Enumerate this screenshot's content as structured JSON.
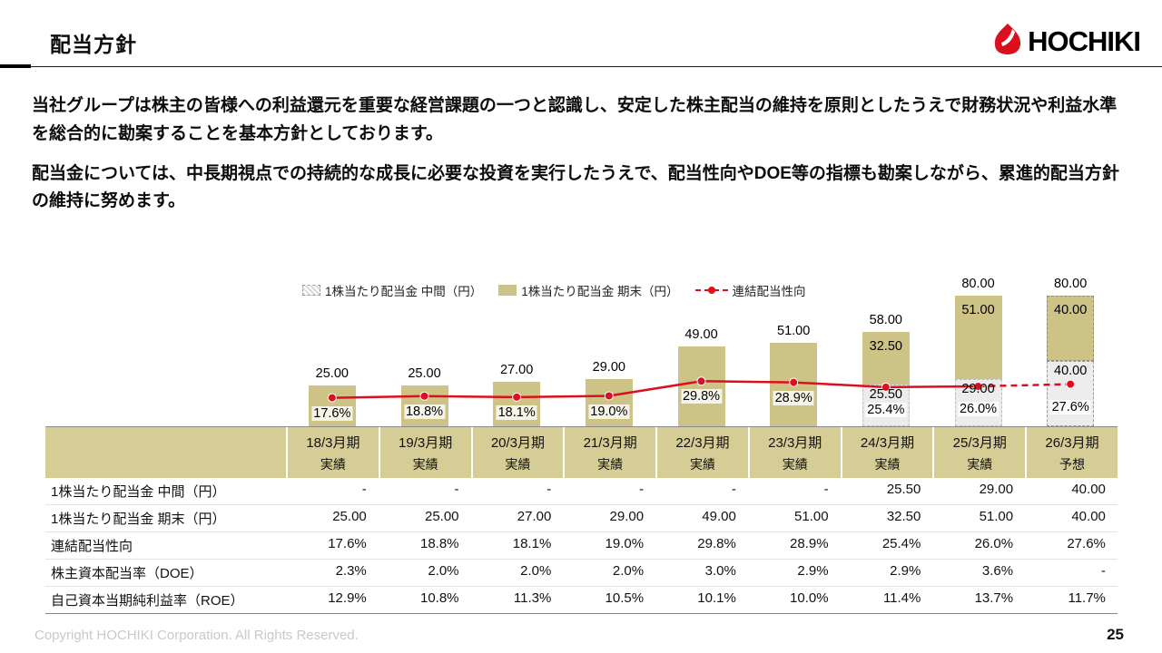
{
  "header": {
    "title": "配当方針",
    "logo_text": "HOCHIKI"
  },
  "intro": {
    "p1": "当社グループは株主の皆様への利益還元を重要な経営課題の一つと認識し、安定した株主配当の維持を原則としたうえで財務状況や利益水準を総合的に勘案することを基本方針としております。",
    "p2": "配当金については、中長期視点での持続的な成長に必要な投資を実行したうえで、配当性向やDOE等の指標も勘案しながら、累進的配当方針の維持に努めます。"
  },
  "chart_data": {
    "type": "bar",
    "categories": [
      "18/3月期",
      "19/3月期",
      "20/3月期",
      "21/3月期",
      "22/3月期",
      "23/3月期",
      "24/3月期",
      "25/3月期",
      "26/3月期"
    ],
    "legend": [
      {
        "label": "1株当たり配当金 中間（円）",
        "swatch": "hatched"
      },
      {
        "label": "1株当たり配当金 期末（円）",
        "swatch": "solid"
      },
      {
        "label": "連結配当性向",
        "swatch": "line"
      }
    ],
    "series": [
      {
        "name": "1株当たり配当金 中間（円）",
        "type": "bar",
        "values": [
          null,
          null,
          null,
          null,
          null,
          null,
          25.5,
          29.0,
          40.0
        ],
        "labels": [
          "",
          "",
          "",
          "",
          "",
          "",
          "25.50",
          "29.00",
          "40.00"
        ]
      },
      {
        "name": "1株当たり配当金 期末（円）",
        "type": "bar",
        "values": [
          25,
          25,
          27,
          29,
          49,
          51,
          32.5,
          51,
          40
        ],
        "labels": [
          "25.00",
          "25.00",
          "27.00",
          "29.00",
          "49.00",
          "51.00",
          "32.50",
          "51.00",
          "40.00"
        ]
      },
      {
        "name": "連結配当性向",
        "type": "line",
        "values": [
          17.6,
          18.8,
          18.1,
          19.0,
          29.8,
          28.9,
          25.4,
          26.0,
          27.6
        ],
        "labels": [
          "17.6%",
          "18.8%",
          "18.1%",
          "19.0%",
          "29.8%",
          "28.9%",
          "25.4%",
          "26.0%",
          "27.6%"
        ]
      }
    ],
    "total_labels": [
      "25.00",
      "25.00",
      "27.00",
      "29.00",
      "49.00",
      "51.00",
      "58.00",
      "80.00",
      "80.00"
    ],
    "forecast_index": 8,
    "colors": {
      "bar_final": "#cdc386",
      "bar_interim": "#ececec",
      "line": "#dc0f1e"
    }
  },
  "table": {
    "col_headers": [
      {
        "period": "18/3月期",
        "sub": "実績"
      },
      {
        "period": "19/3月期",
        "sub": "実績"
      },
      {
        "period": "20/3月期",
        "sub": "実績"
      },
      {
        "period": "21/3月期",
        "sub": "実績"
      },
      {
        "period": "22/3月期",
        "sub": "実績"
      },
      {
        "period": "23/3月期",
        "sub": "実績"
      },
      {
        "period": "24/3月期",
        "sub": "実績"
      },
      {
        "period": "25/3月期",
        "sub": "実績"
      },
      {
        "period": "26/3月期",
        "sub": "予想"
      }
    ],
    "rows": [
      {
        "label": "1株当たり配当金 中間（円）",
        "values": [
          "-",
          "-",
          "-",
          "-",
          "-",
          "-",
          "25.50",
          "29.00",
          "40.00"
        ]
      },
      {
        "label": "1株当たり配当金 期末（円）",
        "values": [
          "25.00",
          "25.00",
          "27.00",
          "29.00",
          "49.00",
          "51.00",
          "32.50",
          "51.00",
          "40.00"
        ]
      },
      {
        "label": "連結配当性向",
        "values": [
          "17.6%",
          "18.8%",
          "18.1%",
          "19.0%",
          "29.8%",
          "28.9%",
          "25.4%",
          "26.0%",
          "27.6%"
        ]
      },
      {
        "label": "株主資本配当率（DOE）",
        "values": [
          "2.3%",
          "2.0%",
          "2.0%",
          "2.0%",
          "3.0%",
          "2.9%",
          "2.9%",
          "3.6%",
          "-"
        ]
      },
      {
        "label": "自己資本当期純利益率（ROE）",
        "values": [
          "12.9%",
          "10.8%",
          "11.3%",
          "10.5%",
          "10.1%",
          "10.0%",
          "11.4%",
          "13.7%",
          "11.7%"
        ]
      }
    ]
  },
  "footer": {
    "copyright": "Copyright HOCHIKI Corporation. All Rights Reserved.",
    "page_number": "25"
  }
}
